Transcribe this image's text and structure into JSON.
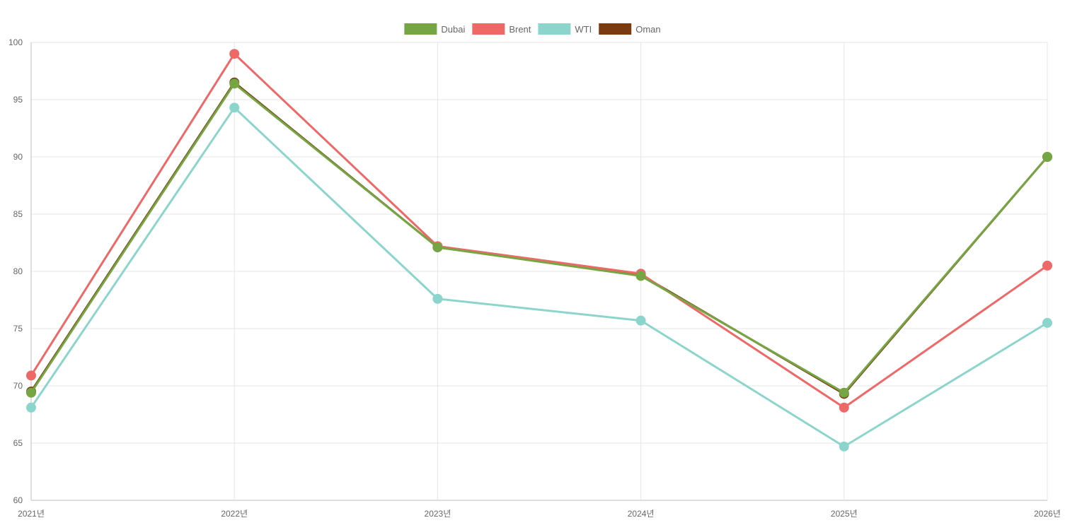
{
  "chart_data": {
    "type": "line",
    "title": "",
    "xlabel": "",
    "ylabel": "",
    "categories": [
      "2021년",
      "2022년",
      "2023년",
      "2024년",
      "2025년",
      "2026년"
    ],
    "ylim": [
      60,
      100
    ],
    "yticks": [
      60,
      65,
      70,
      75,
      80,
      85,
      90,
      95,
      100
    ],
    "grid": true,
    "legend_position": "top-center",
    "series": [
      {
        "name": "Dubai",
        "color": "#76A544",
        "values": [
          69.4,
          96.4,
          82.1,
          79.6,
          69.4,
          90.0
        ]
      },
      {
        "name": "Brent",
        "color": "#EE6868",
        "values": [
          70.9,
          99.0,
          82.2,
          79.8,
          68.1,
          80.5
        ]
      },
      {
        "name": "WTI",
        "color": "#8CD5CC",
        "values": [
          68.1,
          94.3,
          77.6,
          75.7,
          64.7,
          75.5
        ]
      },
      {
        "name": "Oman",
        "color": "#7B3B0E",
        "values": [
          69.5,
          96.5,
          82.1,
          79.7,
          69.3,
          90.0
        ]
      }
    ]
  }
}
